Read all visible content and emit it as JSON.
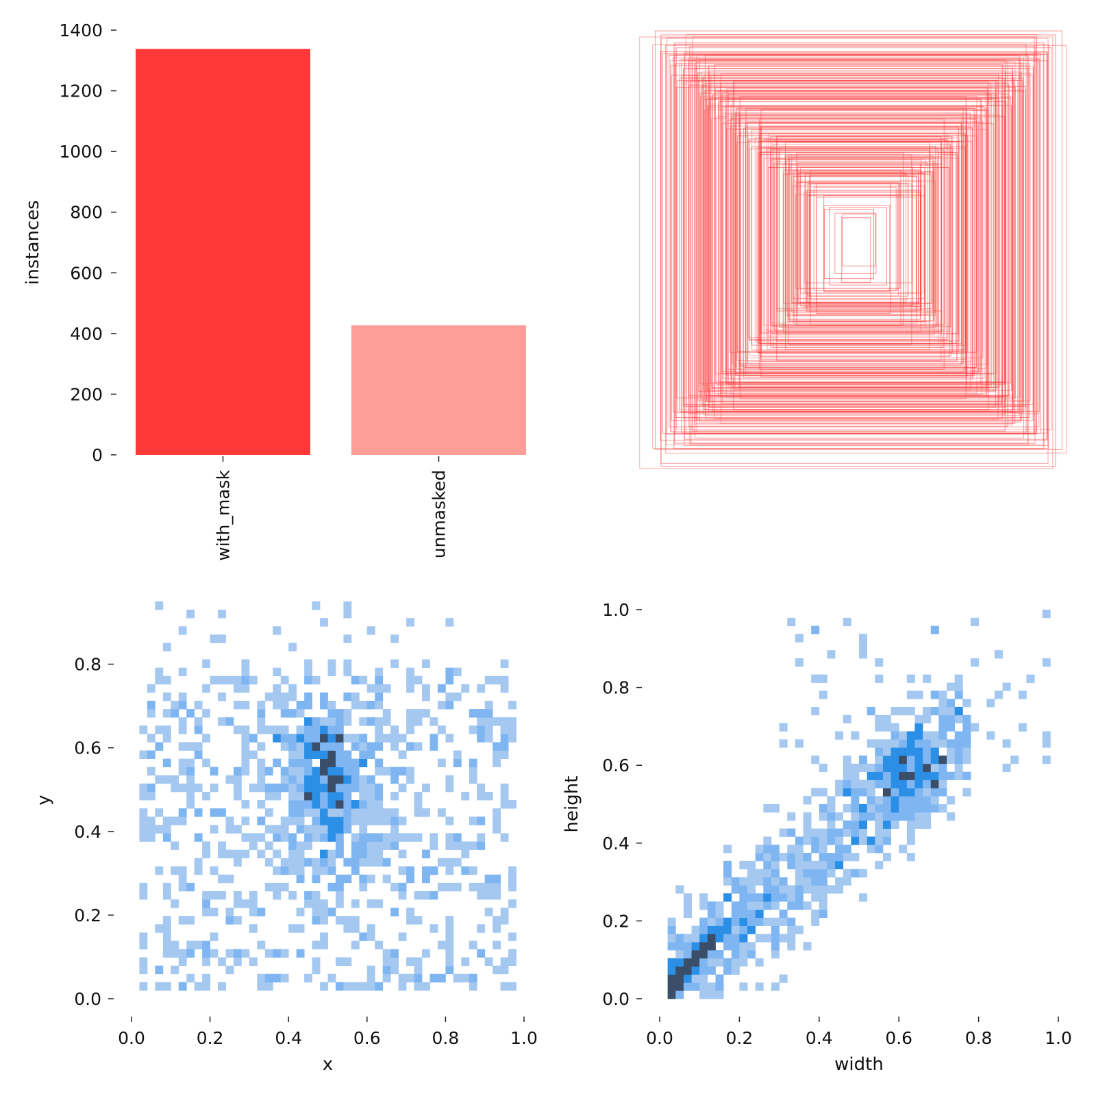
{
  "chart_data": [
    {
      "type": "bar",
      "categories": [
        "with_mask",
        "unmasked"
      ],
      "values": [
        1338,
        427
      ],
      "colors": [
        "#ff3838",
        "#ff9d97"
      ],
      "ylabel": "instances",
      "xlabel": "",
      "ylim": [
        0,
        1400
      ],
      "yticks": [
        "0",
        "200",
        "400",
        "600",
        "800",
        "1000",
        "1200",
        "1400"
      ],
      "grid": false
    },
    {
      "type": "boxes-overlay",
      "description_color": "#ff3838",
      "boxes_wh": [
        [
          0.99,
          0.97
        ],
        [
          0.96,
          1.0
        ],
        [
          0.9,
          0.94
        ],
        [
          0.86,
          0.9
        ],
        [
          0.8,
          0.88
        ],
        [
          0.78,
          0.84
        ],
        [
          0.74,
          0.8
        ],
        [
          0.72,
          0.78
        ],
        [
          0.7,
          0.74
        ],
        [
          0.68,
          0.72
        ],
        [
          0.66,
          0.7
        ],
        [
          0.64,
          0.68
        ],
        [
          0.62,
          0.66
        ],
        [
          0.6,
          0.64
        ],
        [
          0.58,
          0.62
        ],
        [
          0.56,
          0.6
        ],
        [
          0.54,
          0.58
        ],
        [
          0.52,
          0.56
        ],
        [
          0.5,
          0.54
        ],
        [
          0.48,
          0.52
        ],
        [
          0.46,
          0.5
        ],
        [
          0.44,
          0.48
        ],
        [
          0.42,
          0.46
        ],
        [
          0.4,
          0.44
        ],
        [
          0.38,
          0.42
        ],
        [
          0.36,
          0.4
        ],
        [
          0.34,
          0.38
        ],
        [
          0.32,
          0.36
        ],
        [
          0.3,
          0.34
        ],
        [
          0.28,
          0.32
        ],
        [
          0.26,
          0.3
        ],
        [
          0.24,
          0.28
        ],
        [
          0.22,
          0.26
        ],
        [
          0.2,
          0.24
        ],
        [
          0.18,
          0.22
        ],
        [
          0.16,
          0.2
        ],
        [
          0.14,
          0.18
        ],
        [
          0.12,
          0.16
        ],
        [
          0.1,
          0.14
        ],
        [
          0.08,
          0.12
        ],
        [
          0.07,
          0.15
        ],
        [
          0.92,
          0.88
        ],
        [
          0.84,
          0.92
        ],
        [
          0.76,
          0.86
        ],
        [
          0.7,
          0.82
        ],
        [
          0.62,
          0.76
        ],
        [
          0.55,
          0.7
        ],
        [
          0.5,
          0.62
        ],
        [
          0.45,
          0.58
        ],
        [
          0.4,
          0.52
        ],
        [
          0.35,
          0.48
        ],
        [
          0.3,
          0.44
        ],
        [
          0.26,
          0.4
        ],
        [
          0.22,
          0.36
        ],
        [
          0.18,
          0.3
        ],
        [
          0.88,
          0.8
        ],
        [
          0.82,
          0.76
        ],
        [
          0.78,
          0.72
        ],
        [
          0.74,
          0.66
        ],
        [
          0.7,
          0.62
        ],
        [
          0.66,
          0.58
        ],
        [
          0.6,
          0.54
        ],
        [
          0.56,
          0.5
        ],
        [
          0.52,
          0.46
        ],
        [
          0.48,
          0.42
        ],
        [
          0.44,
          0.38
        ],
        [
          0.4,
          0.34
        ],
        [
          0.36,
          0.3
        ],
        [
          0.32,
          0.26
        ],
        [
          0.94,
          0.9
        ],
        [
          0.9,
          0.86
        ],
        [
          0.86,
          0.82
        ],
        [
          0.82,
          0.78
        ],
        [
          0.79,
          0.74
        ],
        [
          0.76,
          0.7
        ],
        [
          0.73,
          0.66
        ]
      ]
    },
    {
      "type": "heatmap",
      "xlabel": "x",
      "ylabel": "y",
      "xlim": [
        0,
        1.0
      ],
      "ylim": [
        0,
        0.95
      ],
      "xticks": [
        "0.0",
        "0.2",
        "0.4",
        "0.6",
        "0.8",
        "1.0"
      ],
      "yticks": [
        "0.0",
        "0.2",
        "0.4",
        "0.6",
        "0.8"
      ],
      "colors": [
        "#a4c8f0",
        "#7fb6f2",
        "#2b8fe6",
        "#3a4e6a"
      ],
      "peak": [
        0.5,
        0.55
      ],
      "note": "2D histogram of box centers; dense core near x=0.5, y=0.55"
    },
    {
      "type": "heatmap",
      "xlabel": "width",
      "ylabel": "height",
      "xlim": [
        0,
        1.0
      ],
      "ylim": [
        0,
        1.0
      ],
      "xticks": [
        "0.0",
        "0.2",
        "0.4",
        "0.6",
        "0.8",
        "1.0"
      ],
      "yticks": [
        "0.0",
        "0.2",
        "0.4",
        "0.6",
        "0.8",
        "1.0"
      ],
      "colors": [
        "#a4c8f0",
        "#7fb6f2",
        "#2b8fe6",
        "#3a4e6a"
      ],
      "peak": [
        0.05,
        0.05
      ],
      "note": "2D histogram of box width vs height; dense near origin, diagonal trend, cluster near 0.6,0.6"
    }
  ]
}
